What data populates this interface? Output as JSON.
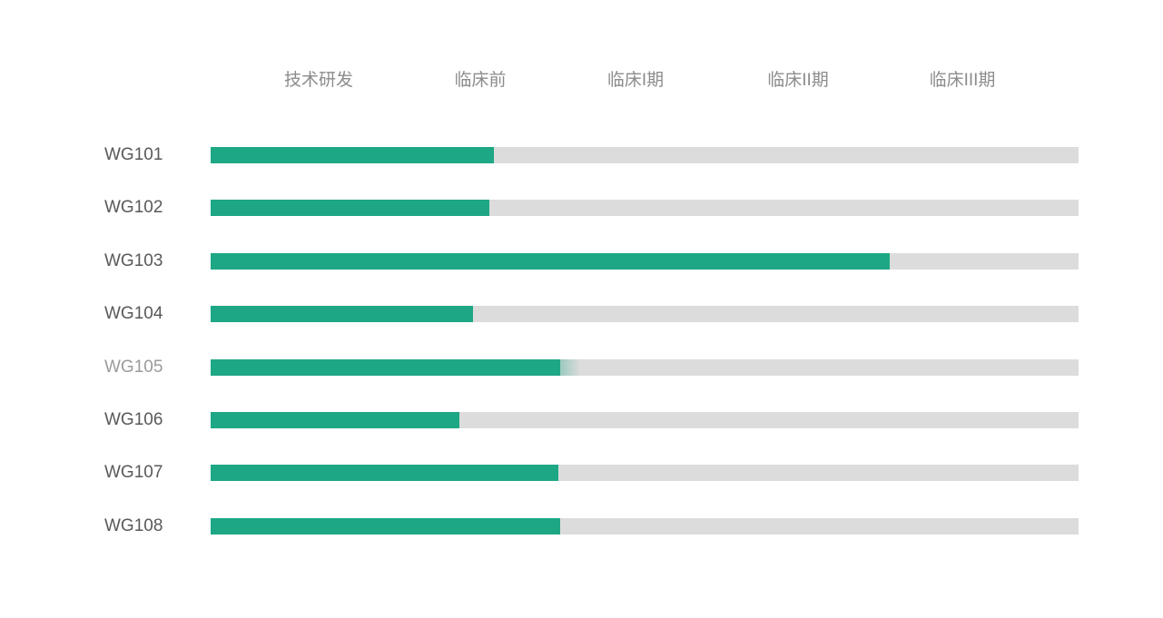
{
  "chart_data": {
    "type": "bar",
    "orientation": "horizontal",
    "title": "",
    "xlabel": "",
    "ylabel": "",
    "xlim_pct": [
      0,
      100
    ],
    "grid": false,
    "legend": "none",
    "phases": [
      "技术研发",
      "临床前",
      "临床I期",
      "临床II期",
      "临床III期"
    ],
    "rows": [
      {
        "label": "WG101",
        "progress_pct": 32.6,
        "highlighted": false
      },
      {
        "label": "WG102",
        "progress_pct": 32.1,
        "highlighted": false
      },
      {
        "label": "WG103",
        "progress_pct": 78.2,
        "highlighted": false
      },
      {
        "label": "WG104",
        "progress_pct": 30.2,
        "highlighted": false
      },
      {
        "label": "WG105",
        "progress_pct": 40.3,
        "highlighted": true
      },
      {
        "label": "WG106",
        "progress_pct": 28.7,
        "highlighted": false
      },
      {
        "label": "WG107",
        "progress_pct": 40.1,
        "highlighted": false
      },
      {
        "label": "WG108",
        "progress_pct": 40.3,
        "highlighted": false
      }
    ],
    "colors": {
      "progress": "#1ea784",
      "track": "#dcdcdc",
      "row_label": "#595959",
      "row_label_highlighted": "#9b9b9b",
      "phase_header": "#8c8c8c",
      "background": "#ffffff"
    }
  }
}
